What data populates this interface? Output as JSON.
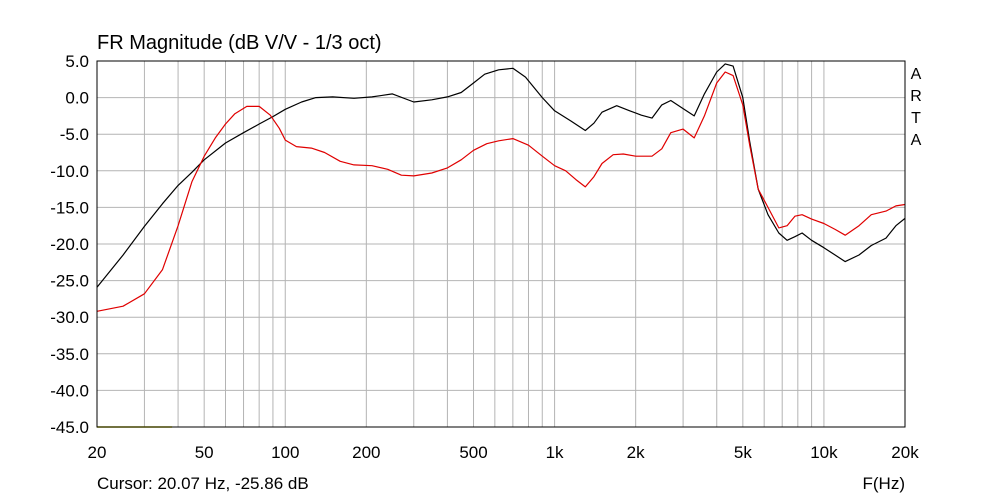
{
  "chart_data": {
    "type": "line",
    "title": "FR Magnitude (dB V/V - 1/3 oct)",
    "xlabel": "F(Hz)",
    "x_scale": "log",
    "xlim": [
      20,
      20000
    ],
    "ylim": [
      -45,
      5
    ],
    "y_ticks": [
      "5.0",
      "0.0",
      "-5.0",
      "-10.0",
      "-15.0",
      "-20.0",
      "-25.0",
      "-30.0",
      "-35.0",
      "-40.0",
      "-45.0"
    ],
    "y_tick_values": [
      5,
      0,
      -5,
      -10,
      -15,
      -20,
      -25,
      -30,
      -35,
      -40,
      -45
    ],
    "x_ticks": [
      "20",
      "50",
      "100",
      "200",
      "500",
      "1k",
      "2k",
      "5k",
      "10k",
      "20k"
    ],
    "x_tick_values": [
      20,
      50,
      100,
      200,
      500,
      1000,
      2000,
      5000,
      10000,
      20000
    ],
    "grid": true,
    "series": [
      {
        "color": "#000000",
        "points": [
          [
            20,
            -25.9
          ],
          [
            25,
            -21.5
          ],
          [
            30,
            -17.6
          ],
          [
            35,
            -14.5
          ],
          [
            40,
            -12.0
          ],
          [
            45,
            -10.2
          ],
          [
            50,
            -8.5
          ],
          [
            60,
            -6.2
          ],
          [
            70,
            -4.8
          ],
          [
            80,
            -3.6
          ],
          [
            90,
            -2.6
          ],
          [
            100,
            -1.6
          ],
          [
            115,
            -0.6
          ],
          [
            130,
            0.0
          ],
          [
            150,
            0.1
          ],
          [
            180,
            -0.1
          ],
          [
            210,
            0.1
          ],
          [
            250,
            0.5
          ],
          [
            300,
            -0.6
          ],
          [
            350,
            -0.3
          ],
          [
            400,
            0.1
          ],
          [
            450,
            0.7
          ],
          [
            500,
            2.0
          ],
          [
            550,
            3.2
          ],
          [
            620,
            3.8
          ],
          [
            700,
            4.0
          ],
          [
            780,
            2.8
          ],
          [
            900,
            0.0
          ],
          [
            1000,
            -1.8
          ],
          [
            1150,
            -3.2
          ],
          [
            1300,
            -4.5
          ],
          [
            1400,
            -3.5
          ],
          [
            1500,
            -2.0
          ],
          [
            1700,
            -1.1
          ],
          [
            1900,
            -1.8
          ],
          [
            2100,
            -2.4
          ],
          [
            2300,
            -2.8
          ],
          [
            2500,
            -1.0
          ],
          [
            2700,
            -0.4
          ],
          [
            3000,
            -1.5
          ],
          [
            3300,
            -2.5
          ],
          [
            3600,
            0.5
          ],
          [
            4000,
            3.5
          ],
          [
            4300,
            4.6
          ],
          [
            4600,
            4.3
          ],
          [
            5000,
            0.0
          ],
          [
            5300,
            -6.0
          ],
          [
            5700,
            -12.5
          ],
          [
            6200,
            -16.0
          ],
          [
            6800,
            -18.5
          ],
          [
            7300,
            -19.5
          ],
          [
            7800,
            -19.0
          ],
          [
            8300,
            -18.5
          ],
          [
            9000,
            -19.5
          ],
          [
            10000,
            -20.5
          ],
          [
            11000,
            -21.5
          ],
          [
            12000,
            -22.4
          ],
          [
            13500,
            -21.5
          ],
          [
            15000,
            -20.2
          ],
          [
            17000,
            -19.2
          ],
          [
            18500,
            -17.5
          ],
          [
            20000,
            -16.5
          ]
        ]
      },
      {
        "color": "#e00000",
        "points": [
          [
            20,
            -29.2
          ],
          [
            25,
            -28.5
          ],
          [
            30,
            -26.8
          ],
          [
            35,
            -23.5
          ],
          [
            40,
            -17.5
          ],
          [
            45,
            -11.5
          ],
          [
            50,
            -8.0
          ],
          [
            55,
            -5.5
          ],
          [
            60,
            -3.6
          ],
          [
            65,
            -2.2
          ],
          [
            72,
            -1.2
          ],
          [
            80,
            -1.2
          ],
          [
            88,
            -2.4
          ],
          [
            95,
            -4.2
          ],
          [
            100,
            -5.8
          ],
          [
            110,
            -6.7
          ],
          [
            125,
            -6.9
          ],
          [
            140,
            -7.5
          ],
          [
            160,
            -8.7
          ],
          [
            180,
            -9.2
          ],
          [
            210,
            -9.3
          ],
          [
            240,
            -9.8
          ],
          [
            270,
            -10.6
          ],
          [
            300,
            -10.7
          ],
          [
            350,
            -10.3
          ],
          [
            400,
            -9.6
          ],
          [
            450,
            -8.5
          ],
          [
            500,
            -7.2
          ],
          [
            560,
            -6.3
          ],
          [
            620,
            -5.9
          ],
          [
            700,
            -5.6
          ],
          [
            800,
            -6.5
          ],
          [
            900,
            -8.0
          ],
          [
            1000,
            -9.3
          ],
          [
            1100,
            -10.0
          ],
          [
            1200,
            -11.2
          ],
          [
            1300,
            -12.2
          ],
          [
            1400,
            -10.8
          ],
          [
            1500,
            -9.0
          ],
          [
            1650,
            -7.8
          ],
          [
            1800,
            -7.7
          ],
          [
            2000,
            -8.0
          ],
          [
            2300,
            -8.0
          ],
          [
            2500,
            -7.0
          ],
          [
            2700,
            -4.8
          ],
          [
            3000,
            -4.3
          ],
          [
            3300,
            -5.5
          ],
          [
            3600,
            -2.5
          ],
          [
            4000,
            2.0
          ],
          [
            4300,
            3.5
          ],
          [
            4600,
            3.0
          ],
          [
            5000,
            -1.0
          ],
          [
            5300,
            -6.5
          ],
          [
            5700,
            -12.5
          ],
          [
            6200,
            -15.0
          ],
          [
            6800,
            -17.8
          ],
          [
            7300,
            -17.5
          ],
          [
            7800,
            -16.2
          ],
          [
            8300,
            -16.0
          ],
          [
            9000,
            -16.6
          ],
          [
            10000,
            -17.2
          ],
          [
            11000,
            -18.0
          ],
          [
            12000,
            -18.8
          ],
          [
            13500,
            -17.5
          ],
          [
            15000,
            -16.0
          ],
          [
            17000,
            -15.5
          ],
          [
            18500,
            -14.8
          ],
          [
            20000,
            -14.6
          ]
        ]
      },
      {
        "color": "#c8c800",
        "points": [
          [
            20,
            -45
          ],
          [
            38,
            -45
          ]
        ]
      }
    ]
  },
  "cursor_readout": "Cursor: 20.07 Hz, -25.86 dB",
  "brand_letters": [
    "A",
    "R",
    "T",
    "A"
  ],
  "colors": {
    "grid": "#b4b4b4",
    "frame": "#000000",
    "background": "#ffffff"
  }
}
